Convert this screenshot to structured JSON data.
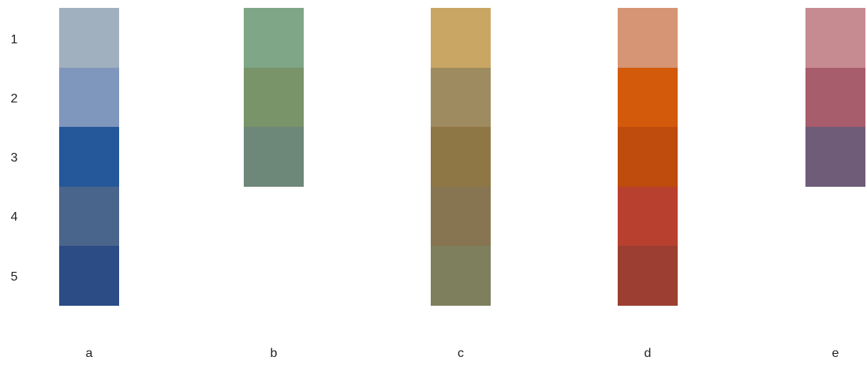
{
  "row_labels": [
    "1",
    "2",
    "3",
    "4",
    "5"
  ],
  "columns": [
    {
      "label": "a",
      "swatches": [
        "#a0b0be",
        "#7f96bd",
        "#24589b",
        "#4a658b",
        "#2b4c85"
      ]
    },
    {
      "label": "b",
      "swatches": [
        "#7fa686",
        "#789468",
        "#6d8779"
      ]
    },
    {
      "label": "c",
      "swatches": [
        "#caa664",
        "#9e8b5f",
        "#8f7645",
        "#867550",
        "#7e7f5d"
      ]
    },
    {
      "label": "d",
      "swatches": [
        "#d69574",
        "#d3590b",
        "#bf4b0c",
        "#b7402e",
        "#9c3e32"
      ]
    },
    {
      "label": "e",
      "swatches": [
        "#c68b91",
        "#a85d6c",
        "#6f5c78"
      ]
    }
  ]
}
